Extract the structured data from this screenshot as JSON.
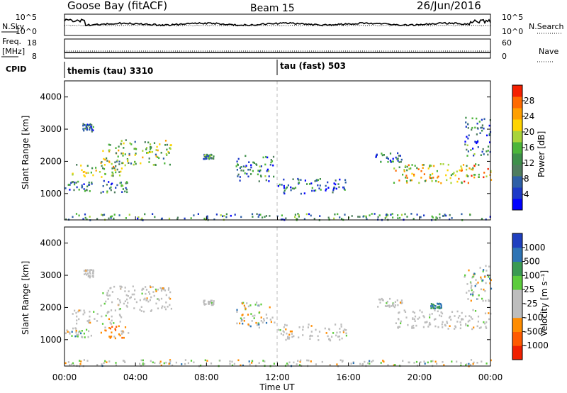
{
  "header": {
    "title": "Goose Bay (fitACF)",
    "beam": "Beam 15",
    "date": "26/Jun/2016"
  },
  "status_panels": {
    "nsky": {
      "label": "N.Sky",
      "ticks": [
        "10^5",
        "10^0"
      ]
    },
    "nsearch": {
      "label": "N.Search",
      "ticks": [
        "10^5",
        "10^0"
      ]
    },
    "freq": {
      "label_line1": "Freq.",
      "label_line2": "[MHz]",
      "ticks": [
        "18",
        "8"
      ]
    },
    "nave": {
      "label": "Nave",
      "ticks": [
        "60",
        "0"
      ]
    },
    "cpid": {
      "label": "CPID",
      "modes": [
        {
          "name": "themis (tau) 3310",
          "start": "00:00"
        },
        {
          "name": "tau (fast) 503",
          "start": "12:00"
        }
      ]
    }
  },
  "chart_data": [
    {
      "type": "heatmap",
      "title": "",
      "ylabel": "Slant Range [km]",
      "xlabel": "",
      "ylim": [
        180,
        4500
      ],
      "yticks": [
        1000,
        2000,
        3000,
        4000
      ],
      "x_range": [
        "00:00",
        "00:00"
      ],
      "colorbar": {
        "label": "Power [dB]",
        "range": [
          0,
          32
        ],
        "ticks": [
          4,
          8,
          12,
          16,
          20,
          24,
          28
        ],
        "colors": [
          "#0000ff",
          "#1c39c8",
          "#2e5fa6",
          "#4f7d5e",
          "#3e8f4a",
          "#4cb53a",
          "#a8d43a",
          "#ffd400",
          "#ff9f00",
          "#ff6a00",
          "#f52000"
        ]
      },
      "regions": [
        {
          "t": [
            0.4,
            3.2
          ],
          "r": [
            1500,
            1950
          ],
          "level": 0.55
        },
        {
          "t": [
            2.0,
            6.0
          ],
          "r": [
            1900,
            2700
          ],
          "level": 0.5
        },
        {
          "t": [
            1.0,
            1.6
          ],
          "r": [
            2950,
            3200
          ],
          "level": 0.3
        },
        {
          "t": [
            0.0,
            1.5
          ],
          "r": [
            1100,
            1400
          ],
          "level": 0.25
        },
        {
          "t": [
            2.0,
            3.6
          ],
          "r": [
            1050,
            1450
          ],
          "level": 0.3
        },
        {
          "t": [
            7.8,
            8.4
          ],
          "r": [
            2100,
            2250
          ],
          "level": 0.4
        },
        {
          "t": [
            9.6,
            11.8
          ],
          "r": [
            1400,
            2200
          ],
          "level": 0.3
        },
        {
          "t": [
            12.0,
            16.0
          ],
          "r": [
            1000,
            1500
          ],
          "level": 0.25
        },
        {
          "t": [
            17.5,
            19.0
          ],
          "r": [
            2000,
            2300
          ],
          "level": 0.3
        },
        {
          "t": [
            18.5,
            24.0
          ],
          "r": [
            1350,
            1950
          ],
          "level": 0.65
        },
        {
          "t": [
            22.5,
            24.0
          ],
          "r": [
            2200,
            3400
          ],
          "level": 0.3
        },
        {
          "t": [
            0.0,
            24.0
          ],
          "r": [
            200,
            400
          ],
          "level": 0.35
        }
      ]
    },
    {
      "type": "heatmap",
      "title": "",
      "ylabel": "Slant Range [km]",
      "xlabel": "Time UT",
      "ylim": [
        180,
        4500
      ],
      "yticks": [
        1000,
        2000,
        3000,
        4000
      ],
      "xticks": [
        "00:00",
        "04:00",
        "08:00",
        "12:00",
        "16:00",
        "20:00",
        "00:00"
      ],
      "colorbar": {
        "label": "Velocity [m s⁻¹]",
        "ticks": [
          "1000",
          "500",
          "100",
          "25",
          "-25",
          "-100",
          "-500",
          "-1000"
        ],
        "colors": [
          "#1f3fbf",
          "#2e74b5",
          "#3a9a52",
          "#5ccc3c",
          "#bdbdbd",
          "#bdbdbd",
          "#ff8c00",
          "#ff5a00",
          "#f02000"
        ]
      },
      "regions": [
        {
          "t": [
            0.4,
            3.2
          ],
          "r": [
            1500,
            1950
          ],
          "kind": "gs"
        },
        {
          "t": [
            2.0,
            6.0
          ],
          "r": [
            1900,
            2700
          ],
          "kind": "gs"
        },
        {
          "t": [
            1.0,
            1.6
          ],
          "r": [
            2950,
            3200
          ],
          "kind": "gs"
        },
        {
          "t": [
            0.0,
            1.5
          ],
          "r": [
            1100,
            1400
          ],
          "kind": "mixed"
        },
        {
          "t": [
            2.0,
            3.6
          ],
          "r": [
            1050,
            1450
          ],
          "kind": "neg"
        },
        {
          "t": [
            7.8,
            8.4
          ],
          "r": [
            2100,
            2250
          ],
          "kind": "gs"
        },
        {
          "t": [
            9.6,
            11.8
          ],
          "r": [
            1400,
            2200
          ],
          "kind": "mixed"
        },
        {
          "t": [
            12.0,
            16.0
          ],
          "r": [
            1000,
            1500
          ],
          "kind": "gs"
        },
        {
          "t": [
            17.5,
            19.0
          ],
          "r": [
            2000,
            2300
          ],
          "kind": "gs"
        },
        {
          "t": [
            18.5,
            24.0
          ],
          "r": [
            1350,
            1950
          ],
          "kind": "gs"
        },
        {
          "t": [
            20.6,
            21.2
          ],
          "r": [
            2000,
            2150
          ],
          "kind": "pos"
        },
        {
          "t": [
            22.5,
            24.0
          ],
          "r": [
            2200,
            3400
          ],
          "kind": "mixed"
        },
        {
          "t": [
            0.0,
            24.0
          ],
          "r": [
            200,
            400
          ],
          "kind": "mixed"
        }
      ]
    }
  ],
  "marker": {
    "time": "12:00",
    "style": "dashed"
  }
}
